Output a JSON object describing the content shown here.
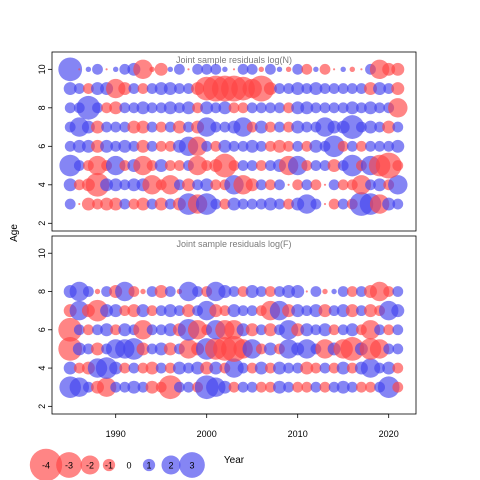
{
  "chart_data": {
    "type": "scatter",
    "encoding": "bubble",
    "xlabel": "Year",
    "ylabel": "Age",
    "xlim": [
      1983,
      2023
    ],
    "x_ticks": [
      1990,
      2000,
      2010,
      2020
    ],
    "ylim": [
      1.6,
      10.9
    ],
    "y_ticks": [
      2,
      4,
      6,
      8,
      10
    ],
    "colors": {
      "positive": "#4444ee",
      "negative": "#ff4444",
      "opacity": 0.65
    },
    "panels": [
      {
        "title": "Joint sample residuals log(N)",
        "years": [
          1985,
          2021
        ],
        "ages": [
          3,
          4,
          5,
          6,
          7,
          8,
          9,
          10
        ],
        "sizes": {
          "3": [
            1.0,
            -0.2,
            -1.2,
            -1.0,
            -1.2,
            -1.2,
            1.0,
            -1.0,
            -1.2,
            1.0,
            -1.2,
            1.0,
            -1.2,
            2.0,
            -1.8,
            2.0,
            1.0,
            -1.0,
            1.2,
            1.0,
            1.0,
            1.0,
            1.2,
            1.0,
            -1.0,
            1.2,
            1.8,
            1.0,
            -0.2,
            -1.0,
            1.0,
            -1.0,
            2.2,
            2.0,
            -1.8,
            1.2,
            1.0
          ],
          "4": [
            1.2,
            -1.0,
            -1.2,
            -2.2,
            1.2,
            1.2,
            1.0,
            1.2,
            1.2,
            -1.8,
            -1.0,
            -1.8,
            1.0,
            -1.2,
            1.0,
            1.2,
            -1.0,
            -1.0,
            1.8,
            -1.8,
            -1.2,
            1.0,
            -1.0,
            1.0,
            -0.2,
            -1.0,
            1.0,
            -1.0,
            -0.2,
            1.0,
            -1.0,
            -1.0,
            -1.8,
            1.0,
            1.2,
            -1.0,
            1.8
          ],
          "5": [
            2.0,
            1.0,
            -1.0,
            -1.8,
            -1.0,
            1.8,
            -1.0,
            1.2,
            -1.8,
            -1.0,
            1.2,
            -1.0,
            -1.0,
            1.0,
            -1.8,
            -1.0,
            -1.2,
            -2.2,
            -1.0,
            1.0,
            1.0,
            -1.0,
            1.0,
            1.2,
            -1.8,
            1.8,
            -1.0,
            1.0,
            1.0,
            -1.2,
            1.0,
            2.0,
            -1.0,
            1.8,
            -2.0,
            -2.4,
            -1.0
          ],
          "6": [
            1.0,
            1.2,
            1.2,
            -1.2,
            1.2,
            1.0,
            1.2,
            1.0,
            -1.2,
            1.0,
            -1.0,
            -1.0,
            1.2,
            1.8,
            -1.8,
            1.0,
            -1.0,
            1.2,
            1.0,
            1.0,
            1.2,
            1.0,
            -1.0,
            -1.2,
            -1.0,
            1.0,
            -1.0,
            1.2,
            1.0,
            2.0,
            -1.0,
            1.0,
            -1.0,
            1.0,
            1.0,
            1.0,
            1.2
          ],
          "7": [
            1.0,
            1.8,
            1.2,
            -1.2,
            1.0,
            1.0,
            1.0,
            -1.2,
            -1.2,
            1.0,
            -1.0,
            1.0,
            -1.2,
            1.0,
            -1.2,
            1.8,
            1.0,
            1.0,
            1.2,
            1.8,
            -1.0,
            1.2,
            -1.0,
            1.0,
            -1.0,
            1.2,
            1.0,
            1.0,
            1.8,
            1.2,
            1.2,
            2.2,
            1.0,
            1.2,
            1.0,
            -1.2,
            1.0
          ],
          "8": [
            1.0,
            1.0,
            2.2,
            1.0,
            -1.0,
            -1.2,
            1.0,
            1.0,
            1.2,
            1.0,
            1.0,
            1.2,
            1.0,
            1.2,
            -1.0,
            1.2,
            1.0,
            1.2,
            -1.0,
            -1.0,
            1.0,
            1.0,
            1.0,
            1.0,
            -1.0,
            1.2,
            1.2,
            1.0,
            1.0,
            1.0,
            1.0,
            1.2,
            1.0,
            1.2,
            1.0,
            1.0,
            -1.8
          ],
          "9": [
            1.2,
            1.0,
            -1.0,
            1.2,
            1.2,
            -1.8,
            -1.2,
            1.0,
            -1.0,
            1.0,
            1.2,
            1.2,
            1.0,
            1.0,
            -1.2,
            -2.2,
            -2.4,
            -2.4,
            -2.4,
            -2.2,
            -1.8,
            -2.4,
            -1.2,
            1.0,
            1.0,
            1.2,
            1.0,
            1.2,
            1.0,
            1.0,
            1.0,
            1.0,
            1.0,
            -1.2,
            1.2,
            1.0,
            -1.2
          ],
          "10": [
            2.2,
            -0.2,
            0.5,
            1.0,
            -0.2,
            0.5,
            1.0,
            1.2,
            -1.8,
            -0.5,
            -1.2,
            0.5,
            1.0,
            -0.2,
            1.0,
            1.0,
            1.0,
            0.5,
            -0.2,
            1.0,
            1.0,
            -0.5,
            1.0,
            0.5,
            -0.5,
            1.0,
            -1.0,
            0.5,
            -1.0,
            -0.2,
            0.5,
            -0.5,
            -0.2,
            1.0,
            -1.8,
            -1.2,
            -1.2
          ]
        }
      },
      {
        "title": "Joint sample residuals log(F)",
        "years": [
          1985,
          2021
        ],
        "ages": [
          3,
          4,
          5,
          6,
          7,
          8
        ],
        "sizes": {
          "3": [
            2.0,
            1.8,
            1.0,
            -1.2,
            -1.8,
            1.0,
            1.0,
            1.2,
            1.0,
            -1.2,
            -1.0,
            -2.2,
            1.0,
            1.0,
            -1.0,
            2.2,
            1.8,
            1.2,
            -1.0,
            1.0,
            1.0,
            -1.0,
            -1.0,
            1.2,
            1.0,
            -1.0,
            -1.0,
            1.0,
            -1.0,
            1.0,
            1.2,
            1.0,
            -1.0,
            -1.0,
            1.0,
            2.0,
            -1.0
          ],
          "4": [
            1.2,
            -1.0,
            -1.2,
            1.8,
            2.0,
            1.2,
            -1.0,
            1.0,
            -1.0,
            -1.2,
            1.0,
            -1.0,
            1.2,
            1.0,
            1.2,
            -1.2,
            1.2,
            -1.0,
            1.8,
            1.0,
            -1.0,
            1.2,
            -1.0,
            1.2,
            1.0,
            1.0,
            -1.2,
            -1.0,
            1.0,
            -1.0,
            1.2,
            -1.0,
            1.2,
            1.8,
            1.0,
            1.2,
            -1.0
          ],
          "5": [
            -2.2,
            1.2,
            1.0,
            -1.2,
            1.0,
            1.8,
            1.8,
            2.0,
            -1.2,
            1.0,
            1.2,
            -1.2,
            1.0,
            -1.8,
            -1.2,
            2.0,
            -2.0,
            -2.2,
            -2.4,
            -1.8,
            1.8,
            -1.0,
            1.2,
            -1.0,
            1.8,
            1.2,
            1.8,
            1.0,
            -1.8,
            1.2,
            -1.8,
            -2.2,
            1.2,
            -2.0,
            -1.8,
            1.0,
            1.0
          ],
          "6": [
            -2.2,
            1.0,
            -1.0,
            1.0,
            1.2,
            -1.0,
            1.2,
            1.0,
            -1.8,
            1.0,
            1.0,
            1.2,
            -1.2,
            2.0,
            -1.8,
            -1.0,
            1.8,
            -1.8,
            -1.8,
            1.2,
            -1.2,
            1.0,
            -1.2,
            1.0,
            1.8,
            -1.2,
            1.2,
            1.0,
            1.2,
            -1.0,
            1.0,
            1.2,
            -1.0,
            -1.8,
            1.0,
            -1.0,
            1.0
          ],
          "7": [
            -1.2,
            1.8,
            -1.2,
            -2.0,
            1.2,
            1.2,
            -1.0,
            -1.2,
            1.2,
            -1.0,
            1.0,
            1.2,
            1.0,
            -1.2,
            1.0,
            1.8,
            -1.2,
            -1.0,
            1.2,
            1.0,
            1.0,
            -1.0,
            -1.8,
            1.8,
            -1.2,
            1.2,
            1.0,
            1.2,
            -1.2,
            1.0,
            1.2,
            -1.2,
            1.0,
            -1.2,
            -1.0,
            1.8,
            1.2
          ],
          "8": [
            1.2,
            1.8,
            1.0,
            -0.5,
            1.0,
            -1.2,
            1.8,
            -1.0,
            -0.5,
            1.0,
            -1.2,
            1.0,
            -0.5,
            1.8,
            1.0,
            -1.0,
            1.8,
            1.2,
            1.0,
            -1.0,
            1.2,
            1.0,
            -1.0,
            1.0,
            1.2,
            1.2,
            -0.2,
            1.0,
            -0.5,
            0.5,
            1.0,
            -1.0,
            1.0,
            -1.2,
            -1.8,
            -1.0,
            1.0
          ]
        }
      }
    ],
    "legend": {
      "values": [
        -4,
        -3,
        -2,
        -1,
        0,
        1,
        2,
        3
      ],
      "labels": [
        "-4",
        "-3",
        "-2",
        "-1",
        "0",
        "1",
        "2",
        "3"
      ]
    }
  }
}
